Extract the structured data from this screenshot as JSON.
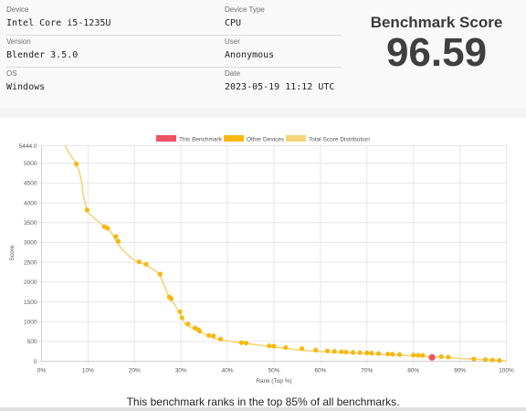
{
  "info": {
    "left": [
      {
        "label": "Device",
        "value": "Intel Core i5-1235U"
      },
      {
        "label": "Version",
        "value": "Blender 3.5.0"
      },
      {
        "label": "OS",
        "value": "Windows"
      }
    ],
    "right": [
      {
        "label": "Device Type",
        "value": "CPU"
      },
      {
        "label": "User",
        "value": "Anonymous"
      },
      {
        "label": "Date",
        "value": "2023-05-19 11:12 UTC"
      }
    ]
  },
  "score": {
    "title": "Benchmark Score",
    "value": "96.59"
  },
  "caption": "This benchmark ranks in the top 85% of all benchmarks.",
  "colors": {
    "this": "#ef5261",
    "other": "#f7b80f",
    "distribution": "#f5d47a",
    "grid": "#e6e6e6"
  },
  "chart_data": {
    "type": "scatter",
    "xlabel": "Rank (Top %)",
    "ylabel": "Score",
    "xlim": [
      0,
      100
    ],
    "ylim": [
      0,
      5444.0
    ],
    "y_max_label": "5444.0",
    "x_ticks": [
      "0%",
      "10%",
      "20%",
      "30%",
      "40%",
      "50%",
      "60%",
      "70%",
      "80%",
      "90%",
      "100%"
    ],
    "y_ticks": [
      "0",
      "500",
      "1000",
      "1500",
      "2000",
      "2500",
      "3000",
      "3500",
      "4000",
      "4500",
      "5000",
      "5444.0"
    ],
    "y_tick_values": [
      0,
      500,
      1000,
      1500,
      2000,
      2500,
      3000,
      3500,
      4000,
      4500,
      5000,
      5444
    ],
    "grid": true,
    "legend_position": "top",
    "legend": [
      "This Benchmark",
      "Other Devices",
      "Total Score Distribution"
    ],
    "distribution": [
      [
        5,
        5444
      ],
      [
        6.5,
        5150
      ],
      [
        7.5,
        4980
      ],
      [
        8.5,
        4600
      ],
      [
        9,
        4200
      ],
      [
        9.8,
        3820
      ],
      [
        11,
        3650
      ],
      [
        13.5,
        3400
      ],
      [
        15,
        3250
      ],
      [
        16.5,
        2950
      ],
      [
        18,
        2750
      ],
      [
        20,
        2550
      ],
      [
        22,
        2450
      ],
      [
        24,
        2320
      ],
      [
        25.5,
        2150
      ],
      [
        27.5,
        1600
      ],
      [
        28.5,
        1450
      ],
      [
        30,
        1150
      ],
      [
        31,
        930
      ],
      [
        33,
        800
      ],
      [
        36,
        640
      ],
      [
        38,
        550
      ],
      [
        42,
        480
      ],
      [
        48,
        390
      ],
      [
        55,
        290
      ],
      [
        62,
        230
      ],
      [
        70,
        190
      ],
      [
        78,
        145
      ],
      [
        84,
        110
      ],
      [
        90,
        70
      ],
      [
        95,
        40
      ],
      [
        100,
        10
      ]
    ],
    "other_devices": [
      [
        7.5,
        4980
      ],
      [
        9.8,
        3820
      ],
      [
        13.5,
        3400
      ],
      [
        14.2,
        3360
      ],
      [
        16,
        3150
      ],
      [
        16.5,
        3030
      ],
      [
        21,
        2510
      ],
      [
        22.5,
        2450
      ],
      [
        25.5,
        2200
      ],
      [
        27.5,
        1620
      ],
      [
        27.9,
        1580
      ],
      [
        29.8,
        1250
      ],
      [
        30.2,
        1100
      ],
      [
        31.5,
        940
      ],
      [
        33,
        840
      ],
      [
        33.7,
        800
      ],
      [
        34,
        760
      ],
      [
        36,
        650
      ],
      [
        37,
        640
      ],
      [
        38.5,
        560
      ],
      [
        43,
        470
      ],
      [
        44,
        460
      ],
      [
        49,
        390
      ],
      [
        50,
        380
      ],
      [
        52.5,
        350
      ],
      [
        56,
        320
      ],
      [
        59,
        280
      ],
      [
        61.5,
        260
      ],
      [
        63,
        250
      ],
      [
        64.5,
        240
      ],
      [
        65.5,
        232
      ],
      [
        67,
        225
      ],
      [
        68.5,
        218
      ],
      [
        70,
        210
      ],
      [
        71,
        205
      ],
      [
        72.5,
        195
      ],
      [
        74.5,
        182
      ],
      [
        75.5,
        178
      ],
      [
        77,
        170
      ],
      [
        80,
        155
      ],
      [
        81,
        150
      ],
      [
        82,
        145
      ],
      [
        86,
        115
      ],
      [
        87.5,
        105
      ],
      [
        93,
        55
      ],
      [
        95.5,
        40
      ],
      [
        97,
        30
      ],
      [
        98.5,
        20
      ]
    ],
    "this_benchmark": [
      [
        84,
        96.59
      ]
    ]
  }
}
